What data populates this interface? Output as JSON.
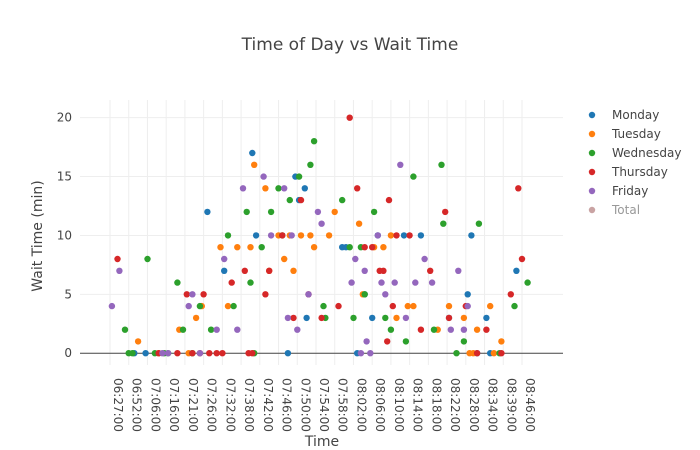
{
  "chart_data": {
    "type": "scatter",
    "title": "Time of Day vs Wait Time",
    "xlabel": "Time",
    "ylabel": "Wait Time (min)",
    "yticks": [
      0,
      5,
      10,
      15,
      20
    ],
    "ylim": [
      -1,
      21.5
    ],
    "xticks": [
      "06:27:00",
      "06:52:00",
      "07:06:00",
      "07:16:00",
      "07:21:00",
      "07:26:00",
      "07:32:00",
      "07:38:00",
      "07:42:00",
      "07:46:00",
      "07:50:00",
      "07:54:00",
      "07:58:00",
      "08:02:00",
      "08:06:00",
      "08:10:00",
      "08:14:00",
      "08:18:00",
      "08:22:00",
      "08:28:00",
      "08:34:00",
      "08:39:00",
      "08:46:00"
    ],
    "legend_position": "right",
    "series": [
      {
        "name": "Monday",
        "color": "#1f77b4",
        "points": [
          [
            1.3,
            0
          ],
          [
            1.9,
            0
          ],
          [
            5.2,
            12
          ],
          [
            6.1,
            7
          ],
          [
            7.6,
            17
          ],
          [
            7.8,
            10
          ],
          [
            9.5,
            0
          ],
          [
            9.9,
            15
          ],
          [
            10.1,
            13
          ],
          [
            10.4,
            14
          ],
          [
            10.5,
            3
          ],
          [
            12.4,
            9
          ],
          [
            12.6,
            9
          ],
          [
            13.2,
            0
          ],
          [
            13.6,
            5
          ],
          [
            14.0,
            3
          ],
          [
            14.3,
            10
          ],
          [
            15.7,
            10
          ],
          [
            16.6,
            10
          ],
          [
            18.1,
            3
          ],
          [
            19.1,
            5
          ],
          [
            19.3,
            10
          ],
          [
            19.6,
            0
          ],
          [
            20.1,
            3
          ],
          [
            20.3,
            0
          ],
          [
            21.7,
            7
          ]
        ]
      },
      {
        "name": "Tuesday",
        "color": "#ff7f0e",
        "points": [
          [
            1.5,
            1
          ],
          [
            2.6,
            0
          ],
          [
            3.7,
            2
          ],
          [
            4.2,
            0
          ],
          [
            4.6,
            3
          ],
          [
            4.9,
            4
          ],
          [
            5.9,
            9
          ],
          [
            6.3,
            4
          ],
          [
            6.8,
            9
          ],
          [
            7.5,
            9
          ],
          [
            7.7,
            16
          ],
          [
            8.3,
            14
          ],
          [
            8.5,
            7
          ],
          [
            9.0,
            10
          ],
          [
            9.3,
            8
          ],
          [
            9.6,
            10
          ],
          [
            9.8,
            7
          ],
          [
            10.2,
            10
          ],
          [
            10.7,
            10
          ],
          [
            10.9,
            9
          ],
          [
            11.7,
            10
          ],
          [
            12.0,
            12
          ],
          [
            13.3,
            11
          ],
          [
            13.5,
            5
          ],
          [
            14.1,
            9
          ],
          [
            14.6,
            9
          ],
          [
            15.0,
            10
          ],
          [
            15.3,
            3
          ],
          [
            15.9,
            4
          ],
          [
            16.2,
            4
          ],
          [
            17.5,
            2
          ],
          [
            18.1,
            4
          ],
          [
            18.9,
            3
          ],
          [
            19.2,
            0
          ],
          [
            19.4,
            0
          ],
          [
            19.6,
            2
          ],
          [
            20.3,
            4
          ],
          [
            20.5,
            0
          ],
          [
            20.9,
            1
          ]
        ]
      },
      {
        "name": "Wednesday",
        "color": "#2ca02c",
        "points": [
          [
            0.8,
            2
          ],
          [
            1.0,
            0
          ],
          [
            1.2,
            0
          ],
          [
            2.0,
            8
          ],
          [
            2.4,
            0
          ],
          [
            2.9,
            0
          ],
          [
            3.6,
            6
          ],
          [
            3.9,
            2
          ],
          [
            4.4,
            0
          ],
          [
            4.8,
            4
          ],
          [
            5.4,
            2
          ],
          [
            6.3,
            10
          ],
          [
            6.6,
            4
          ],
          [
            7.3,
            12
          ],
          [
            7.5,
            6
          ],
          [
            7.7,
            0
          ],
          [
            8.1,
            9
          ],
          [
            8.6,
            12
          ],
          [
            9.0,
            14
          ],
          [
            9.2,
            10
          ],
          [
            9.6,
            13
          ],
          [
            10.1,
            15
          ],
          [
            10.7,
            16
          ],
          [
            10.9,
            18
          ],
          [
            11.4,
            4
          ],
          [
            11.5,
            3
          ],
          [
            12.4,
            13
          ],
          [
            12.8,
            9
          ],
          [
            13.0,
            3
          ],
          [
            13.4,
            9
          ],
          [
            13.6,
            5
          ],
          [
            14.1,
            12
          ],
          [
            14.7,
            3
          ],
          [
            15.0,
            2
          ],
          [
            15.8,
            1
          ],
          [
            16.2,
            15
          ],
          [
            17.3,
            2
          ],
          [
            17.7,
            16
          ],
          [
            17.8,
            11
          ],
          [
            18.5,
            0
          ],
          [
            18.9,
            1
          ],
          [
            19.7,
            11
          ],
          [
            20.8,
            0
          ],
          [
            21.6,
            4
          ],
          [
            22.3,
            6
          ],
          [
            3.1,
            0
          ]
        ]
      },
      {
        "name": "Thursday",
        "color": "#d62728",
        "points": [
          [
            0.4,
            8
          ],
          [
            2.6,
            0
          ],
          [
            3.6,
            0
          ],
          [
            4.1,
            5
          ],
          [
            4.4,
            0
          ],
          [
            4.8,
            0
          ],
          [
            5.0,
            5
          ],
          [
            5.3,
            0
          ],
          [
            5.7,
            0
          ],
          [
            6.0,
            0
          ],
          [
            6.5,
            6
          ],
          [
            7.2,
            7
          ],
          [
            7.4,
            0
          ],
          [
            7.6,
            0
          ],
          [
            8.3,
            5
          ],
          [
            8.5,
            7
          ],
          [
            9.2,
            10
          ],
          [
            9.8,
            3
          ],
          [
            10.2,
            13
          ],
          [
            10.6,
            5
          ],
          [
            11.3,
            3
          ],
          [
            12.2,
            4
          ],
          [
            12.8,
            20
          ],
          [
            13.2,
            14
          ],
          [
            13.6,
            9
          ],
          [
            14.0,
            9
          ],
          [
            14.4,
            7
          ],
          [
            14.6,
            7
          ],
          [
            14.9,
            13
          ],
          [
            15.1,
            4
          ],
          [
            15.3,
            10
          ],
          [
            16.0,
            10
          ],
          [
            16.6,
            2
          ],
          [
            17.1,
            7
          ],
          [
            17.9,
            12
          ],
          [
            18.1,
            3
          ],
          [
            19.0,
            4
          ],
          [
            19.6,
            0
          ],
          [
            20.1,
            2
          ],
          [
            20.9,
            0
          ],
          [
            21.8,
            14
          ],
          [
            22.0,
            8
          ],
          [
            21.4,
            5
          ],
          [
            14.8,
            1
          ]
        ]
      },
      {
        "name": "Friday",
        "color": "#9467bd",
        "points": [
          [
            0.1,
            4
          ],
          [
            0.5,
            7
          ],
          [
            2.8,
            0
          ],
          [
            3.1,
            0
          ],
          [
            4.2,
            4
          ],
          [
            4.4,
            5
          ],
          [
            4.8,
            0
          ],
          [
            5.7,
            2
          ],
          [
            6.1,
            8
          ],
          [
            6.8,
            2
          ],
          [
            7.1,
            14
          ],
          [
            8.2,
            15
          ],
          [
            8.6,
            10
          ],
          [
            9.3,
            14
          ],
          [
            9.5,
            3
          ],
          [
            9.7,
            10
          ],
          [
            10.0,
            2
          ],
          [
            10.6,
            5
          ],
          [
            11.1,
            12
          ],
          [
            11.3,
            11
          ],
          [
            12.9,
            6
          ],
          [
            13.1,
            8
          ],
          [
            13.4,
            0
          ],
          [
            13.7,
            1
          ],
          [
            13.9,
            0
          ],
          [
            14.3,
            10
          ],
          [
            14.5,
            6
          ],
          [
            14.7,
            5
          ],
          [
            15.2,
            6
          ],
          [
            15.5,
            16
          ],
          [
            15.8,
            3
          ],
          [
            16.3,
            6
          ],
          [
            16.8,
            8
          ],
          [
            17.2,
            6
          ],
          [
            18.2,
            2
          ],
          [
            18.6,
            7
          ],
          [
            18.9,
            2
          ],
          [
            19.1,
            4
          ],
          [
            13.6,
            7
          ]
        ]
      },
      {
        "name": "Total",
        "color": "#c9a3a3",
        "faded": true,
        "points": []
      }
    ]
  }
}
